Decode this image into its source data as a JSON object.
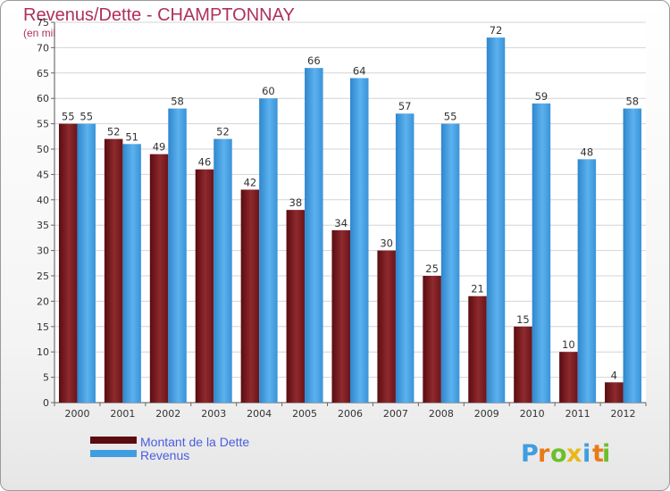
{
  "chart_data": {
    "type": "bar",
    "title": "Revenus/Dette - CHAMPTONNAY",
    "subtitle": "(en milliers d'€)",
    "categories": [
      "2000",
      "2001",
      "2002",
      "2003",
      "2004",
      "2005",
      "2006",
      "2007",
      "2008",
      "2009",
      "2010",
      "2011",
      "2012"
    ],
    "series": [
      {
        "name": "Montant de la Dette",
        "color": "#7a1a1f",
        "values": [
          55,
          52,
          49,
          46,
          42,
          38,
          34,
          30,
          25,
          21,
          15,
          10,
          4
        ]
      },
      {
        "name": "Revenus",
        "color": "#3f9ee0",
        "values": [
          55,
          51,
          58,
          52,
          60,
          66,
          64,
          57,
          55,
          72,
          59,
          48,
          58
        ]
      }
    ],
    "ylim": [
      0,
      75
    ],
    "yticks": [
      0,
      5,
      10,
      15,
      20,
      25,
      30,
      35,
      40,
      45,
      50,
      55,
      60,
      65,
      70,
      75
    ],
    "grid": true,
    "legend": "bottom-left"
  },
  "logo": {
    "letters": [
      "P",
      "r",
      "o",
      "x",
      "i",
      "t",
      "i"
    ],
    "colors": [
      "#3f9ee0",
      "#e87a1a",
      "#6cbf2a",
      "#e8b81a",
      "#3f9ee0",
      "#e87a1a",
      "#6cbf2a"
    ]
  }
}
